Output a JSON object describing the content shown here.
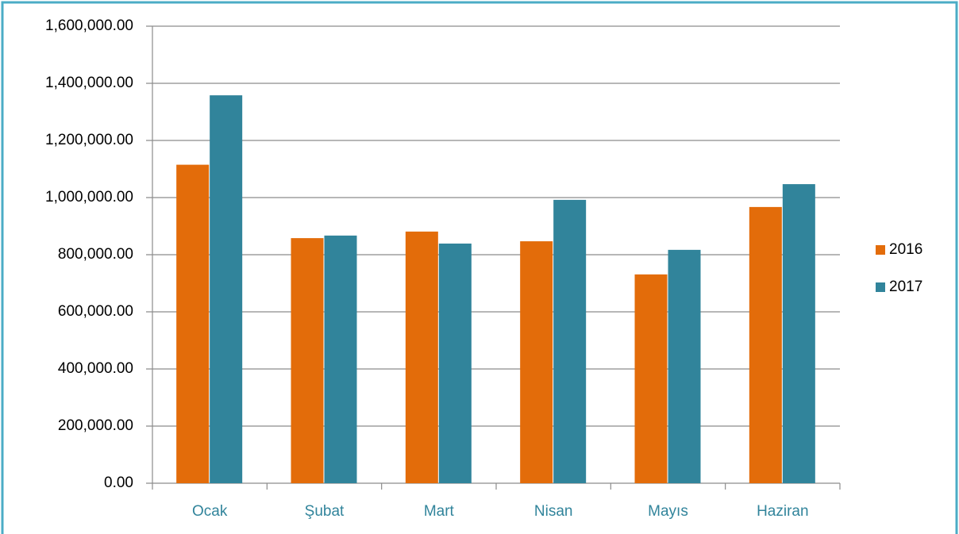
{
  "chart_data": {
    "type": "bar",
    "categories": [
      "Ocak",
      "Şubat",
      "Mart",
      "Nisan",
      "Mayıs",
      "Haziran"
    ],
    "series": [
      {
        "name": "2016",
        "color": "#e36c0a",
        "values": [
          1115000,
          858000,
          881000,
          847000,
          731000,
          967000
        ]
      },
      {
        "name": "2017",
        "color": "#31849b",
        "values": [
          1358000,
          867000,
          839000,
          992000,
          817000,
          1047000
        ]
      }
    ],
    "ylim": [
      0,
      1600000
    ],
    "yticks": [
      {
        "value": 0,
        "label": "0.00"
      },
      {
        "value": 200000,
        "label": "200,000.00"
      },
      {
        "value": 400000,
        "label": "400,000.00"
      },
      {
        "value": 600000,
        "label": "600,000.00"
      },
      {
        "value": 800000,
        "label": "800,000.00"
      },
      {
        "value": 1000000,
        "label": "1,000,000.00"
      },
      {
        "value": 1200000,
        "label": "1,200,000.00"
      },
      {
        "value": 1400000,
        "label": "1,400,000.00"
      },
      {
        "value": 1600000,
        "label": "1,600,000.00"
      }
    ],
    "grid": true,
    "legend": "right"
  }
}
